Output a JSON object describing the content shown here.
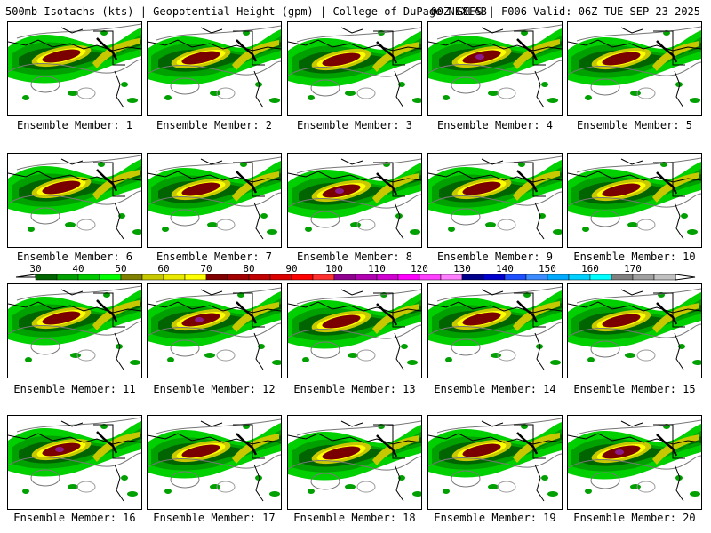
{
  "header": {
    "left": "500mb Isotachs (kts) | Geopotential Height (gpm) | College of DuPage NEXLAB",
    "right": "00Z GEFS | F006 Valid: 06Z TUE SEP 23 2025"
  },
  "panels": [
    {
      "label": "Ensemble Member: 1"
    },
    {
      "label": "Ensemble Member: 2"
    },
    {
      "label": "Ensemble Member: 3"
    },
    {
      "label": "Ensemble Member: 4"
    },
    {
      "label": "Ensemble Member: 5"
    },
    {
      "label": "Ensemble Member: 6"
    },
    {
      "label": "Ensemble Member: 7"
    },
    {
      "label": "Ensemble Member: 8"
    },
    {
      "label": "Ensemble Member: 9"
    },
    {
      "label": "Ensemble Member: 10"
    },
    {
      "label": "Ensemble Member: 11"
    },
    {
      "label": "Ensemble Member: 12"
    },
    {
      "label": "Ensemble Member: 13"
    },
    {
      "label": "Ensemble Member: 14"
    },
    {
      "label": "Ensemble Member: 15"
    },
    {
      "label": "Ensemble Member: 16"
    },
    {
      "label": "Ensemble Member: 17"
    },
    {
      "label": "Ensemble Member: 18"
    },
    {
      "label": "Ensemble Member: 19"
    },
    {
      "label": "Ensemble Member: 20"
    }
  ],
  "colorbar": {
    "min": 30,
    "max": 170,
    "step": 10,
    "labels": [
      "30",
      "40",
      "50",
      "60",
      "70",
      "80",
      "90",
      "100",
      "110",
      "120",
      "130",
      "140",
      "150",
      "160",
      "170"
    ],
    "colors": [
      "#006400",
      "#00a000",
      "#00c800",
      "#00ff00",
      "#808000",
      "#c8c800",
      "#e8e800",
      "#ffff00",
      "#800000",
      "#a00000",
      "#c00000",
      "#dc0000",
      "#ff0000",
      "#ff3030",
      "#900090",
      "#b000b0",
      "#d000d0",
      "#ff00ff",
      "#ff40ff",
      "#ff80ff",
      "#00008b",
      "#0000cd",
      "#1e50ff",
      "#3c8cff",
      "#00aaff",
      "#00d0ff",
      "#00ffff",
      "#808080",
      "#a0a0a0",
      "#c0c0c0"
    ]
  },
  "jet_colors": {
    "g1": "#006400",
    "g2": "#00a000",
    "g3": "#00d000",
    "y1": "#c8c800",
    "y2": "#ffff00",
    "r": "#7a0000",
    "p": "#8a1a8a"
  }
}
